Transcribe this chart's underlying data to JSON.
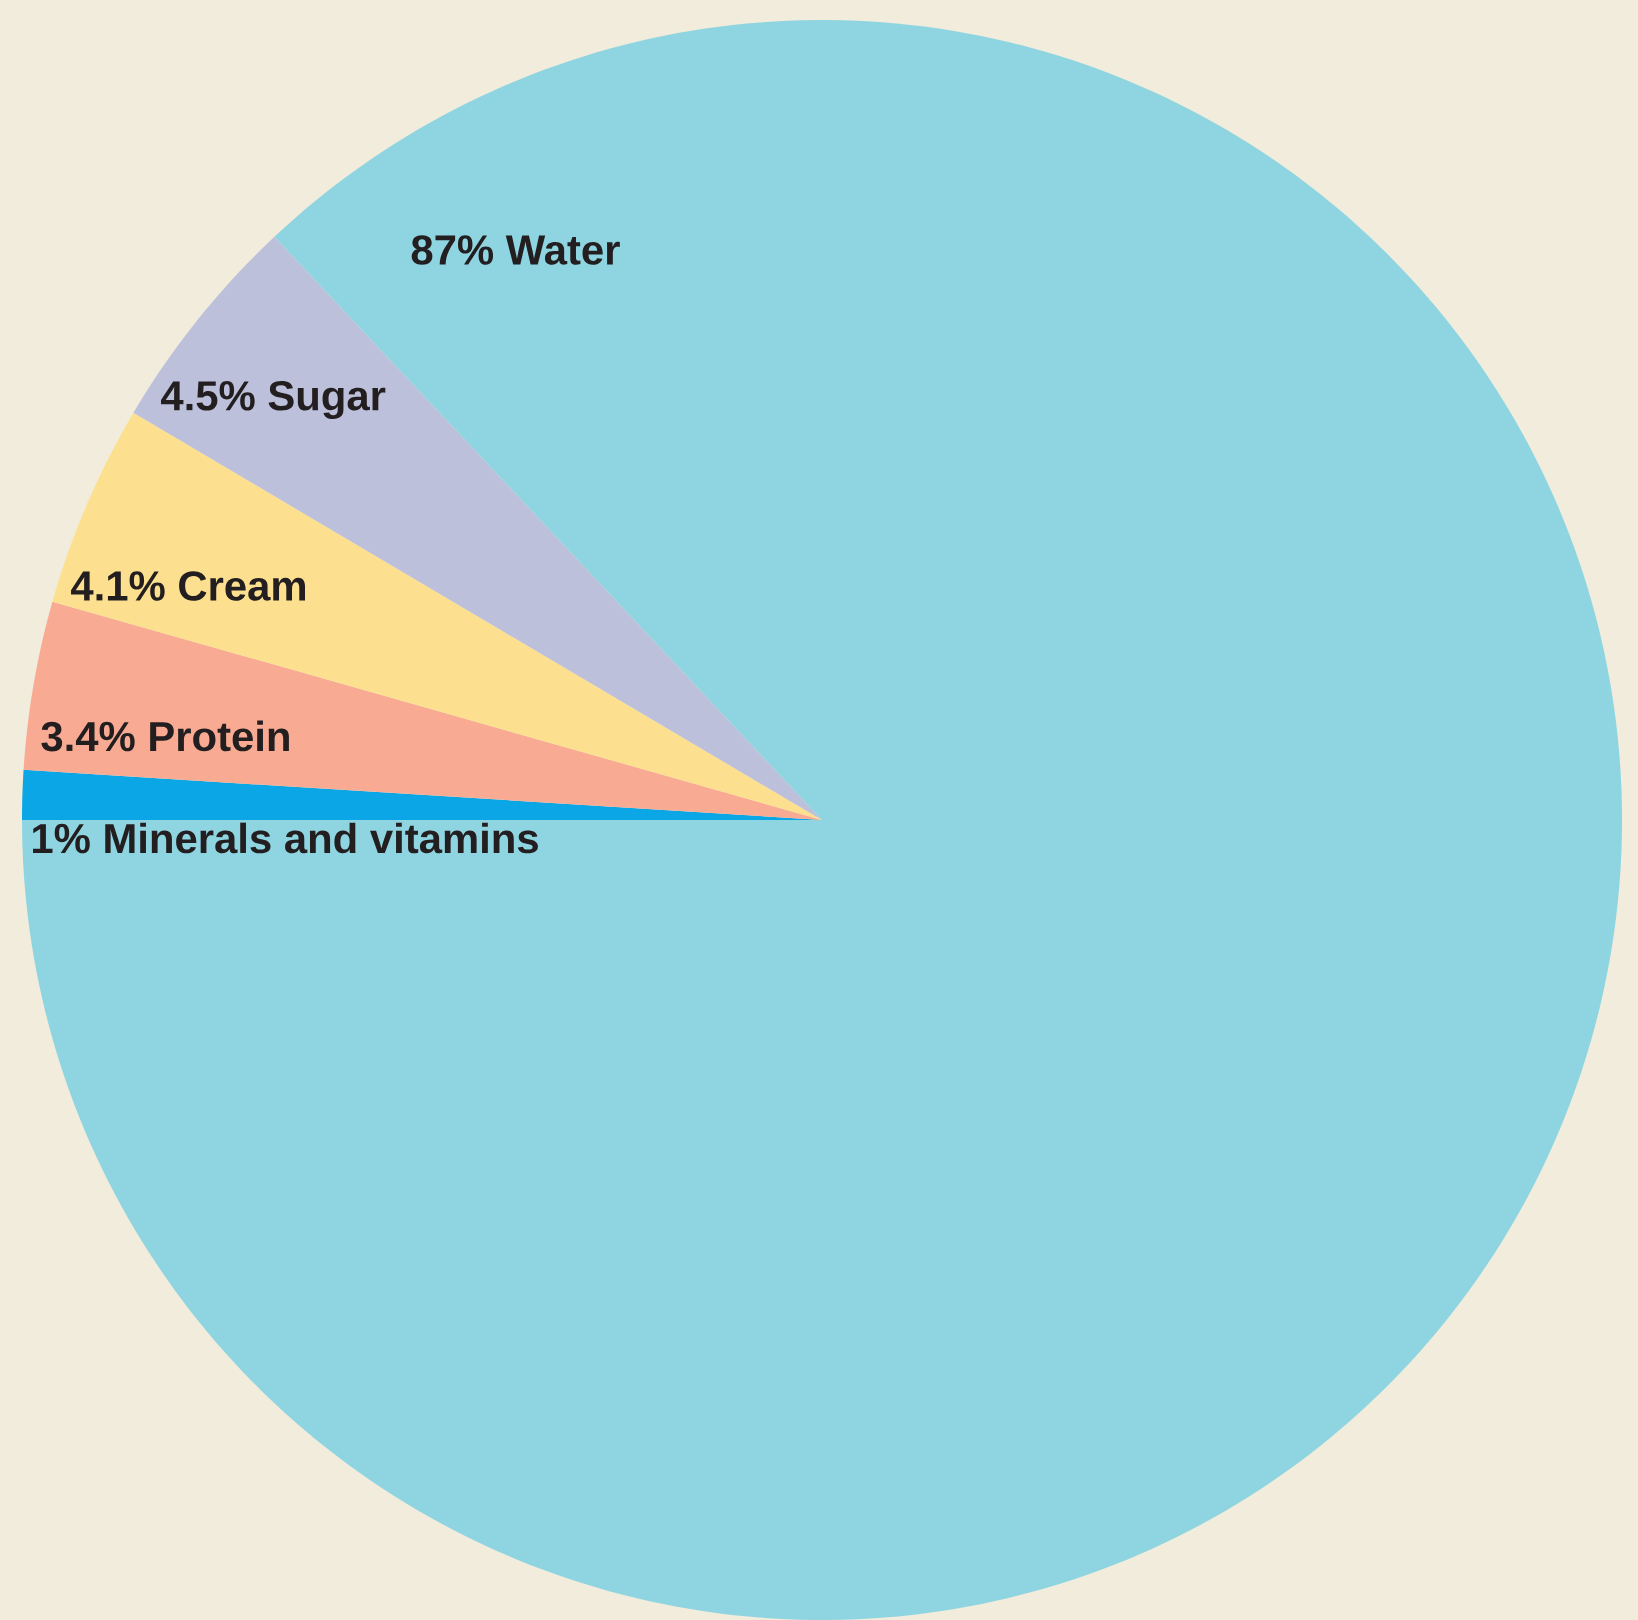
{
  "chart_data": {
    "type": "pie",
    "categories": [
      "1% Minerals and vitamins",
      "3.4% Protein",
      "4.1% Cream",
      "4.5% Sugar",
      "87% Water"
    ],
    "values": [
      1,
      3.4,
      4.1,
      4.5,
      87
    ],
    "colors": [
      "#0aa6e6",
      "#f8ab92",
      "#fde08f",
      "#bcc0da",
      "#8fd5e1"
    ]
  }
}
